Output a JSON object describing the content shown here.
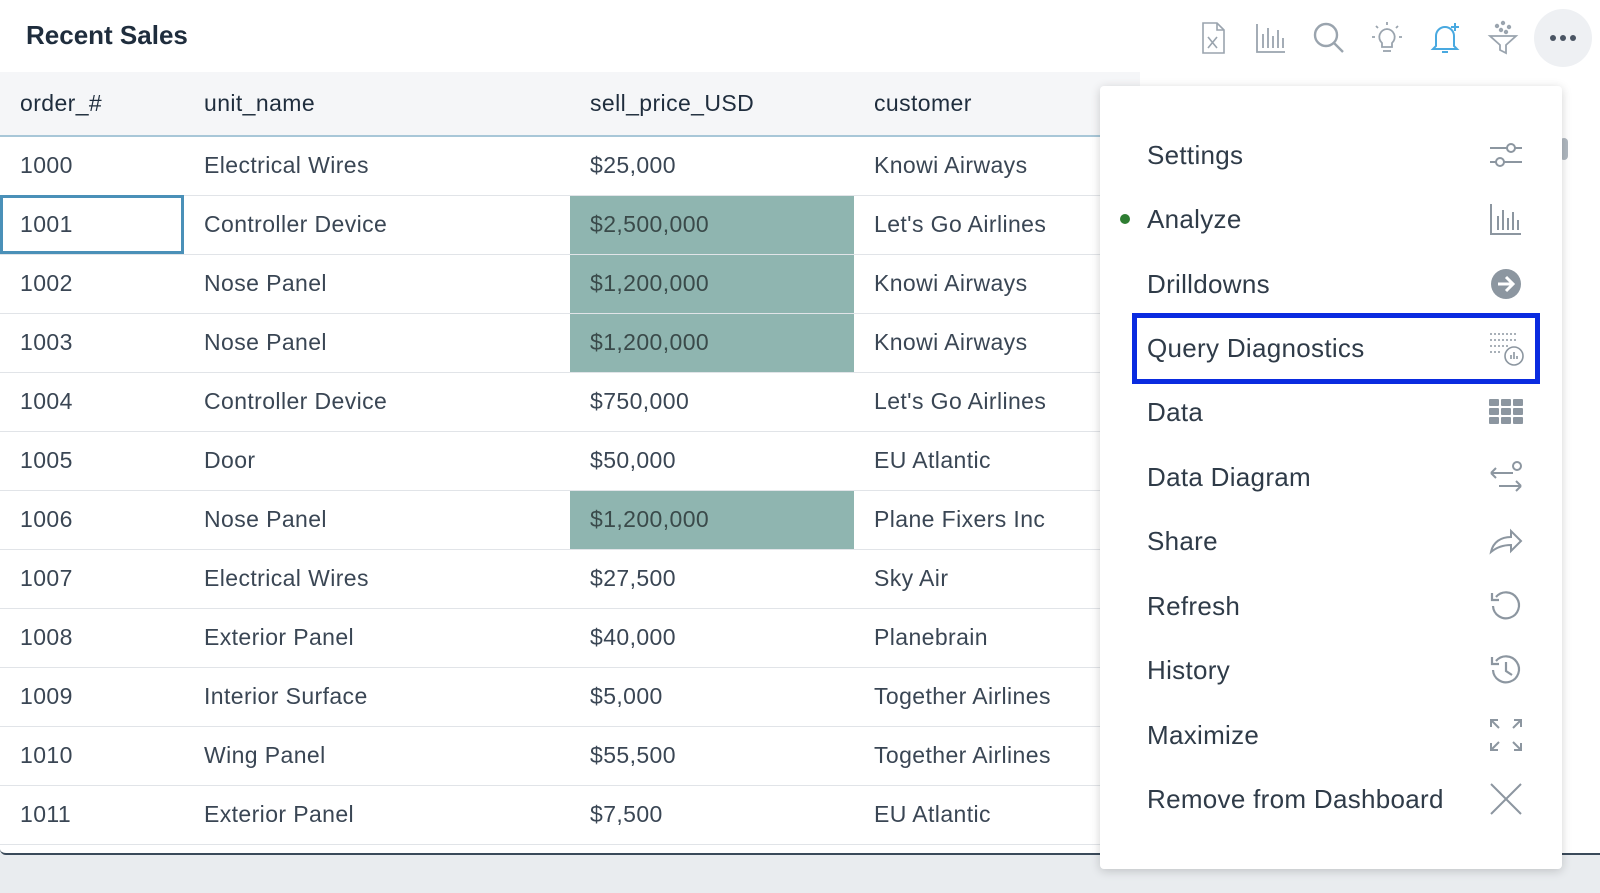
{
  "header": {
    "title": "Recent Sales"
  },
  "toolbar": {
    "icons": [
      "excel-export-icon",
      "analyze-chart-icon",
      "search-icon",
      "insights-bulb-icon",
      "alert-bell-icon",
      "filter-icon",
      "more-icon"
    ]
  },
  "table": {
    "columns": [
      "order_#",
      "unit_name",
      "sell_price_USD",
      "customer"
    ],
    "rows": [
      [
        "1000",
        "Electrical Wires",
        "$25,000",
        "Knowi Airways"
      ],
      [
        "1001",
        "Controller Device",
        "$2,500,000",
        "Let's Go Airlines"
      ],
      [
        "1002",
        "Nose Panel",
        "$1,200,000",
        "Knowi Airways"
      ],
      [
        "1003",
        "Nose Panel",
        "$1,200,000",
        "Knowi Airways"
      ],
      [
        "1004",
        "Controller Device",
        "$750,000",
        "Let's Go Airlines"
      ],
      [
        "1005",
        "Door",
        "$50,000",
        "EU Atlantic"
      ],
      [
        "1006",
        "Nose Panel",
        "$1,200,000",
        "Plane Fixers Inc"
      ],
      [
        "1007",
        "Electrical Wires",
        "$27,500",
        "Sky Air"
      ],
      [
        "1008",
        "Exterior Panel",
        "$40,000",
        "Planebrain"
      ],
      [
        "1009",
        "Interior Surface",
        "$5,000",
        "Together Airlines"
      ],
      [
        "1010",
        "Wing Panel",
        "$55,500",
        "Together Airlines"
      ],
      [
        "1011",
        "Exterior Panel",
        "$7,500",
        "EU Atlantic"
      ]
    ],
    "highlight_color": "#8fb5b0"
  },
  "menu": {
    "items": [
      {
        "label": "Settings",
        "icon": "settings-sliders-icon"
      },
      {
        "label": "Analyze",
        "icon": "analyze-chart-icon",
        "active": true
      },
      {
        "label": "Drilldowns",
        "icon": "arrow-right-circle-icon"
      },
      {
        "label": "Query Diagnostics",
        "icon": "query-diagnostics-icon",
        "focused": true
      },
      {
        "label": "Data",
        "icon": "data-grid-icon"
      },
      {
        "label": "Data Diagram",
        "icon": "data-diagram-icon"
      },
      {
        "label": "Share",
        "icon": "share-arrow-icon"
      },
      {
        "label": "Refresh",
        "icon": "refresh-icon"
      },
      {
        "label": "History",
        "icon": "history-icon"
      },
      {
        "label": "Maximize",
        "icon": "maximize-icon"
      },
      {
        "label": "Remove from Dashboard",
        "icon": "close-icon"
      }
    ],
    "focus_color": "#0a2be0",
    "active_dot_color": "#2e7d32"
  }
}
